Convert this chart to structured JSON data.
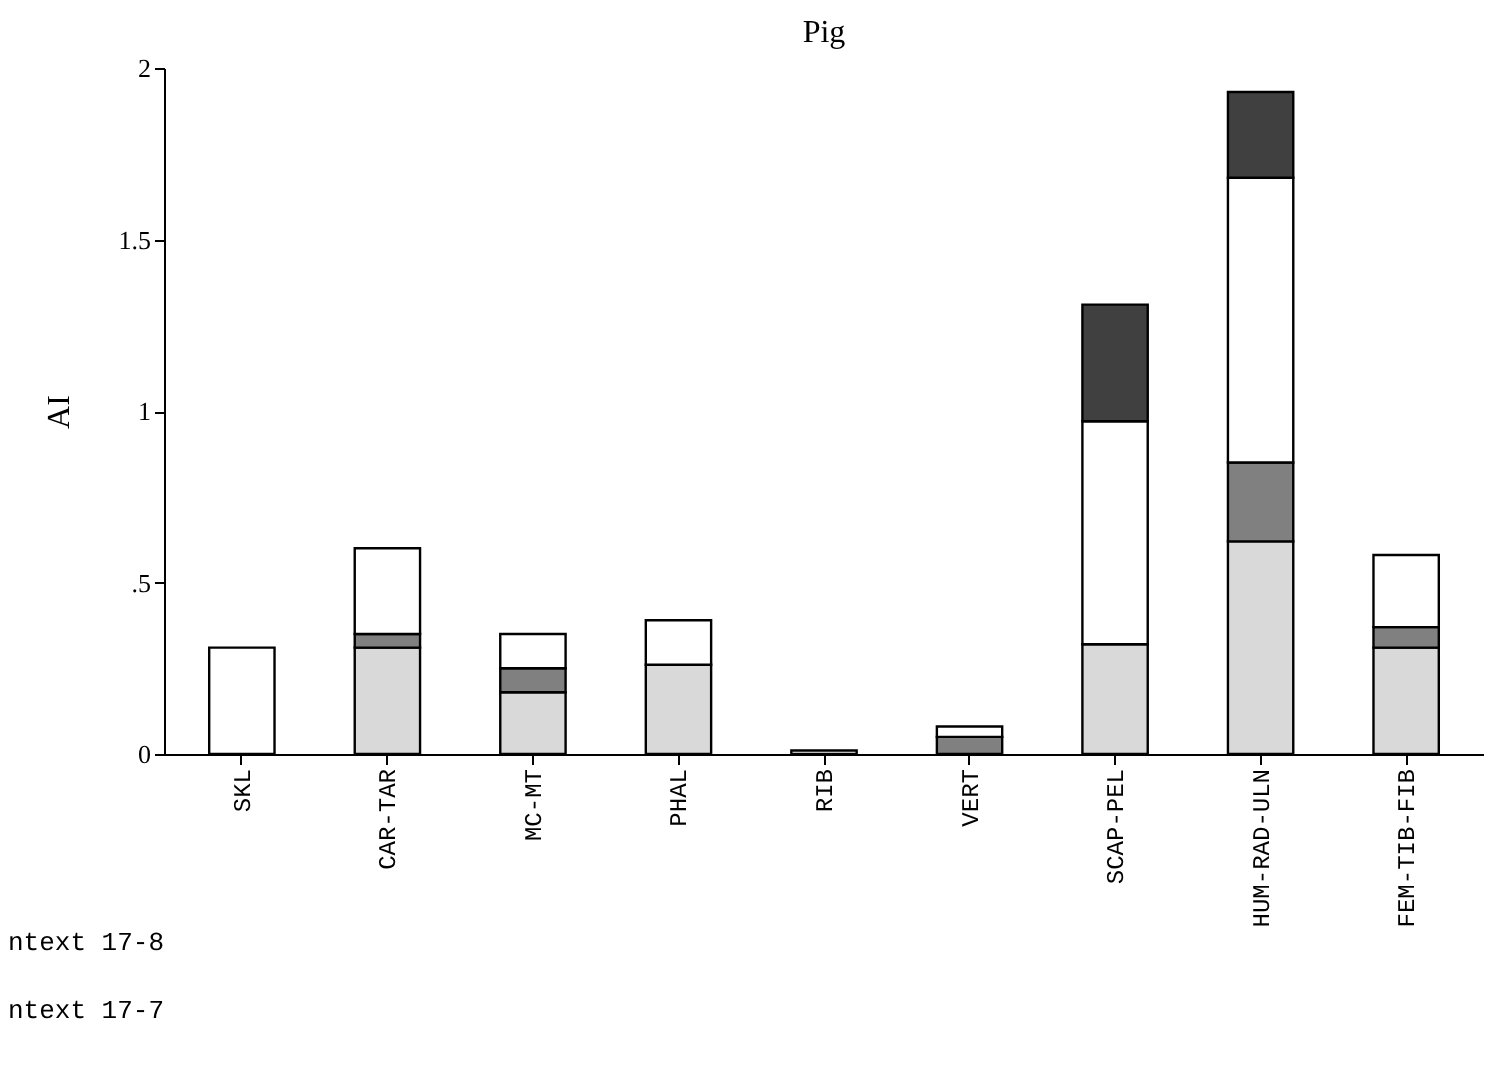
{
  "chart_data": {
    "type": "bar",
    "title": "Pig",
    "ylabel": "AI",
    "stacked": true,
    "categories": [
      "SKL",
      "CAR-TAR",
      "MC-MT",
      "PHAL",
      "RIB",
      "VERT",
      "SCAP-PEL",
      "HUM-RAD-ULN",
      "FEM-TIB-FIB"
    ],
    "series": [
      {
        "color": "#d9d9d9",
        "values": [
          0,
          0.31,
          0.18,
          0.26,
          0,
          0,
          0.32,
          0.62,
          0.31
        ]
      },
      {
        "color": "#808080",
        "values": [
          0,
          0.04,
          0.07,
          0,
          0,
          0.05,
          0,
          0.23,
          0.06
        ]
      },
      {
        "color": "#ffffff",
        "values": [
          0.31,
          0.25,
          0.1,
          0.13,
          0.01,
          0.03,
          0.65,
          0.83,
          0.21
        ]
      },
      {
        "color": "#404040",
        "values": [
          0,
          0,
          0,
          0,
          0,
          0,
          0.34,
          0.25,
          0
        ]
      }
    ],
    "ylim": [
      0,
      2
    ],
    "yticks": [
      0,
      {
        "value": 0.5,
        "label": ".5"
      },
      1,
      1.5,
      2
    ],
    "grid": false,
    "legend": false,
    "annotations": [
      "ntext 17-8",
      "ntext 17-7"
    ]
  }
}
